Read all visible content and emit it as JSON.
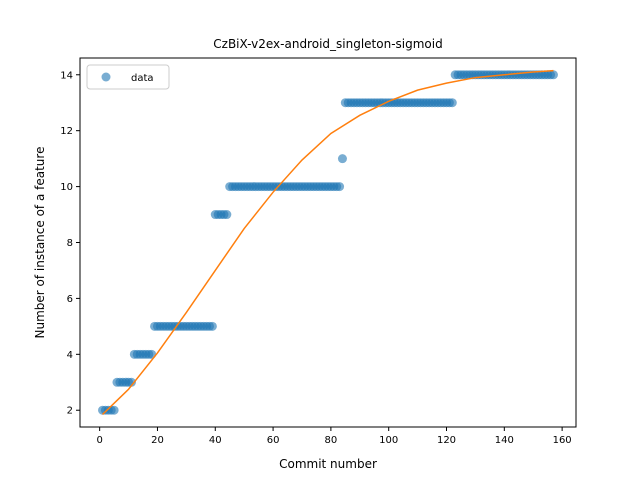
{
  "chart_data": {
    "type": "scatter",
    "title": "CzBiX-v2ex-android_singleton-sigmoid",
    "xlabel": "Commit number",
    "ylabel": "Number of instance of a feature",
    "xlim": [
      -6.8,
      164.8
    ],
    "ylim": [
      1.4,
      14.6
    ],
    "xticks": [
      0,
      20,
      40,
      60,
      80,
      100,
      120,
      140,
      160
    ],
    "yticks": [
      2,
      4,
      6,
      8,
      10,
      12,
      14
    ],
    "grid": false,
    "legend": {
      "placement": "top-left",
      "entries": [
        "data"
      ]
    },
    "colors": {
      "data": "#1f77b4",
      "fit": "#ff7f0e"
    },
    "series": [
      {
        "name": "data",
        "kind": "scatter",
        "points": [
          [
            1,
            2
          ],
          [
            2,
            2
          ],
          [
            3,
            2
          ],
          [
            4,
            2
          ],
          [
            5,
            2
          ],
          [
            6,
            3
          ],
          [
            7,
            3
          ],
          [
            8,
            3
          ],
          [
            9,
            3
          ],
          [
            10,
            3
          ],
          [
            11,
            3
          ],
          [
            12,
            4
          ],
          [
            13,
            4
          ],
          [
            14,
            4
          ],
          [
            15,
            4
          ],
          [
            16,
            4
          ],
          [
            17,
            4
          ],
          [
            18,
            4
          ],
          [
            19,
            5
          ],
          [
            20,
            5
          ],
          [
            21,
            5
          ],
          [
            22,
            5
          ],
          [
            23,
            5
          ],
          [
            24,
            5
          ],
          [
            25,
            5
          ],
          [
            26,
            5
          ],
          [
            27,
            5
          ],
          [
            28,
            5
          ],
          [
            29,
            5
          ],
          [
            30,
            5
          ],
          [
            31,
            5
          ],
          [
            32,
            5
          ],
          [
            33,
            5
          ],
          [
            34,
            5
          ],
          [
            35,
            5
          ],
          [
            36,
            5
          ],
          [
            37,
            5
          ],
          [
            38,
            5
          ],
          [
            39,
            5
          ],
          [
            40,
            9
          ],
          [
            41,
            9
          ],
          [
            42,
            9
          ],
          [
            43,
            9
          ],
          [
            44,
            9
          ],
          [
            45,
            10
          ],
          [
            46,
            10
          ],
          [
            47,
            10
          ],
          [
            48,
            10
          ],
          [
            49,
            10
          ],
          [
            50,
            10
          ],
          [
            51,
            10
          ],
          [
            52,
            10
          ],
          [
            53,
            10
          ],
          [
            54,
            10
          ],
          [
            55,
            10
          ],
          [
            56,
            10
          ],
          [
            57,
            10
          ],
          [
            58,
            10
          ],
          [
            59,
            10
          ],
          [
            60,
            10
          ],
          [
            61,
            10
          ],
          [
            62,
            10
          ],
          [
            63,
            10
          ],
          [
            64,
            10
          ],
          [
            65,
            10
          ],
          [
            66,
            10
          ],
          [
            67,
            10
          ],
          [
            68,
            10
          ],
          [
            69,
            10
          ],
          [
            70,
            10
          ],
          [
            71,
            10
          ],
          [
            72,
            10
          ],
          [
            73,
            10
          ],
          [
            74,
            10
          ],
          [
            75,
            10
          ],
          [
            76,
            10
          ],
          [
            77,
            10
          ],
          [
            78,
            10
          ],
          [
            79,
            10
          ],
          [
            80,
            10
          ],
          [
            81,
            10
          ],
          [
            82,
            10
          ],
          [
            83,
            10
          ],
          [
            84,
            11
          ],
          [
            85,
            13
          ],
          [
            86,
            13
          ],
          [
            87,
            13
          ],
          [
            88,
            13
          ],
          [
            89,
            13
          ],
          [
            90,
            13
          ],
          [
            91,
            13
          ],
          [
            92,
            13
          ],
          [
            93,
            13
          ],
          [
            94,
            13
          ],
          [
            95,
            13
          ],
          [
            96,
            13
          ],
          [
            97,
            13
          ],
          [
            98,
            13
          ],
          [
            99,
            13
          ],
          [
            100,
            13
          ],
          [
            101,
            13
          ],
          [
            102,
            13
          ],
          [
            103,
            13
          ],
          [
            104,
            13
          ],
          [
            105,
            13
          ],
          [
            106,
            13
          ],
          [
            107,
            13
          ],
          [
            108,
            13
          ],
          [
            109,
            13
          ],
          [
            110,
            13
          ],
          [
            111,
            13
          ],
          [
            112,
            13
          ],
          [
            113,
            13
          ],
          [
            114,
            13
          ],
          [
            115,
            13
          ],
          [
            116,
            13
          ],
          [
            117,
            13
          ],
          [
            118,
            13
          ],
          [
            119,
            13
          ],
          [
            120,
            13
          ],
          [
            121,
            13
          ],
          [
            122,
            13
          ],
          [
            123,
            14
          ],
          [
            124,
            14
          ],
          [
            125,
            14
          ],
          [
            126,
            14
          ],
          [
            127,
            14
          ],
          [
            128,
            14
          ],
          [
            129,
            14
          ],
          [
            130,
            14
          ],
          [
            131,
            14
          ],
          [
            132,
            14
          ],
          [
            133,
            14
          ],
          [
            134,
            14
          ],
          [
            135,
            14
          ],
          [
            136,
            14
          ],
          [
            137,
            14
          ],
          [
            138,
            14
          ],
          [
            139,
            14
          ],
          [
            140,
            14
          ],
          [
            141,
            14
          ],
          [
            142,
            14
          ],
          [
            143,
            14
          ],
          [
            144,
            14
          ],
          [
            145,
            14
          ],
          [
            146,
            14
          ],
          [
            147,
            14
          ],
          [
            148,
            14
          ],
          [
            149,
            14
          ],
          [
            150,
            14
          ],
          [
            151,
            14
          ],
          [
            152,
            14
          ],
          [
            153,
            14
          ],
          [
            154,
            14
          ],
          [
            155,
            14
          ],
          [
            156,
            14
          ],
          [
            157,
            14
          ]
        ]
      },
      {
        "kind": "line",
        "points": [
          [
            1,
            1.85
          ],
          [
            10,
            2.75
          ],
          [
            20,
            4.05
          ],
          [
            30,
            5.5
          ],
          [
            40,
            7.0
          ],
          [
            50,
            8.5
          ],
          [
            60,
            9.8
          ],
          [
            70,
            10.95
          ],
          [
            80,
            11.9
          ],
          [
            90,
            12.55
          ],
          [
            100,
            13.05
          ],
          [
            110,
            13.45
          ],
          [
            120,
            13.7
          ],
          [
            130,
            13.9
          ],
          [
            140,
            14.0
          ],
          [
            150,
            14.1
          ],
          [
            157,
            14.15
          ]
        ]
      }
    ]
  }
}
